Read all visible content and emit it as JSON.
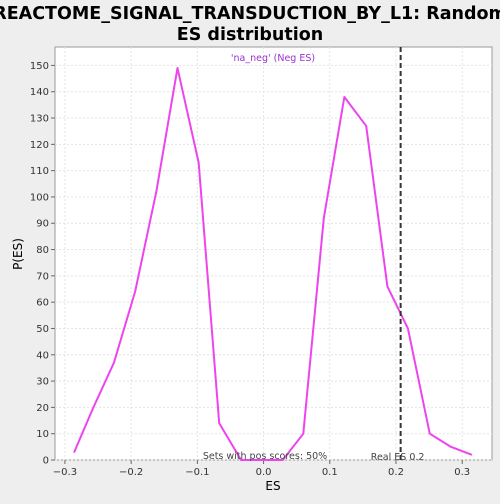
{
  "chart_data": {
    "type": "line",
    "title_line1": "REACTOME_SIGNAL_TRANSDUCTION_BY_L1: Random",
    "title_line2": "ES distribution",
    "xlabel": "ES",
    "ylabel": "P(ES)",
    "xlim": [
      -0.315,
      0.345
    ],
    "ylim": [
      0,
      157
    ],
    "x_ticks": [
      -0.3,
      -0.2,
      -0.1,
      0.0,
      0.1,
      0.2,
      0.3
    ],
    "x_tick_labels": [
      "−0.3",
      "−0.2",
      "−0.1",
      "0.0",
      "0.1",
      "0.2",
      "0.3"
    ],
    "y_ticks": [
      0,
      10,
      20,
      30,
      40,
      50,
      60,
      70,
      80,
      90,
      100,
      110,
      120,
      130,
      140,
      150
    ],
    "grid": true,
    "legend_label": "'na_neg' (Neg ES)",
    "legend_position": "top-center",
    "line_color": "#ee44ee",
    "series": [
      {
        "x": [
          -0.286,
          -0.257,
          -0.226,
          -0.194,
          -0.162,
          -0.13,
          -0.098,
          -0.067,
          -0.034,
          -0.003,
          0.029,
          0.06,
          0.091,
          0.122,
          0.155,
          0.187,
          0.218,
          0.251,
          0.283,
          0.314
        ],
        "values": [
          3,
          20,
          37,
          64,
          102,
          149,
          113,
          14,
          0,
          0,
          0,
          10,
          92,
          138,
          127,
          66,
          50,
          10,
          5,
          2
        ]
      }
    ],
    "real_es": {
      "x": 0.207,
      "label": "Real ES 0.2"
    },
    "annotation": "Sets with pos scores: 50%"
  }
}
